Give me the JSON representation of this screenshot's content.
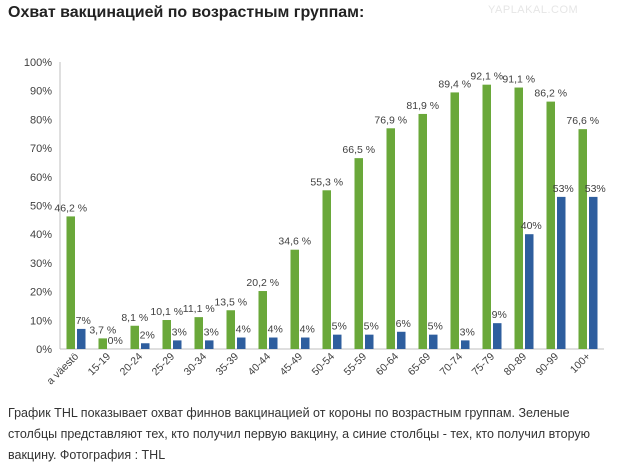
{
  "page": {
    "title": "Охват вакцинацией по возрастным группам:",
    "watermark": "YAPLAKAL.COM",
    "caption": "График THL показывает охват финнов вакцинацией от короны по возрастным группам. Зеленые столбцы представляют тех, кто получил первую вакцину, а синие столбцы - тех, кто получил вторую вакцину. Фотография : THL"
  },
  "colors": {
    "first_dose": "#6aa83a",
    "second_dose": "#2e5e9e",
    "grid": "#d9d9d9",
    "text": "#404040"
  },
  "chart_data": {
    "type": "bar",
    "categories": [
      "a väestö",
      "15-19",
      "20-24",
      "25-29",
      "30-34",
      "35-39",
      "40-44",
      "45-49",
      "50-54",
      "55-59",
      "60-64",
      "65-69",
      "70-74",
      "75-79",
      "80-89",
      "90-99",
      "100+"
    ],
    "series": [
      {
        "values": [
          46.2,
          3.7,
          8.1,
          10.1,
          11.1,
          13.5,
          20.2,
          34.6,
          55.3,
          66.5,
          76.9,
          81.9,
          89.4,
          92.1,
          91.1,
          86.2,
          76.6
        ],
        "labels": [
          "46,2 %",
          "3,7 %",
          "8,1 %",
          "10,1 %",
          "11,1 %",
          "13,5 %",
          "20,2 %",
          "34,6 %",
          "55,3 %",
          "66,5 %",
          "76,9 %",
          "81,9 %",
          "89,4 %",
          "92,1 %",
          "91,1 %",
          "86,2 %",
          "76,6 %"
        ]
      },
      {
        "values": [
          7,
          0,
          2,
          3,
          3,
          4,
          4,
          4,
          5,
          5,
          6,
          5,
          3,
          9,
          40,
          53,
          53
        ],
        "labels": [
          "7%",
          "0%",
          "2%",
          "3%",
          "3%",
          "4%",
          "4%",
          "4%",
          "5%",
          "5%",
          "6%",
          "5%",
          "3%",
          "9%",
          "40%",
          "53%",
          "53%"
        ]
      }
    ],
    "ylim": [
      0,
      100
    ],
    "yticks": [
      "0%",
      "10%",
      "20%",
      "30%",
      "40%",
      "50%",
      "60%",
      "70%",
      "80%",
      "90%",
      "100%"
    ],
    "grid": false,
    "legend": "none"
  }
}
